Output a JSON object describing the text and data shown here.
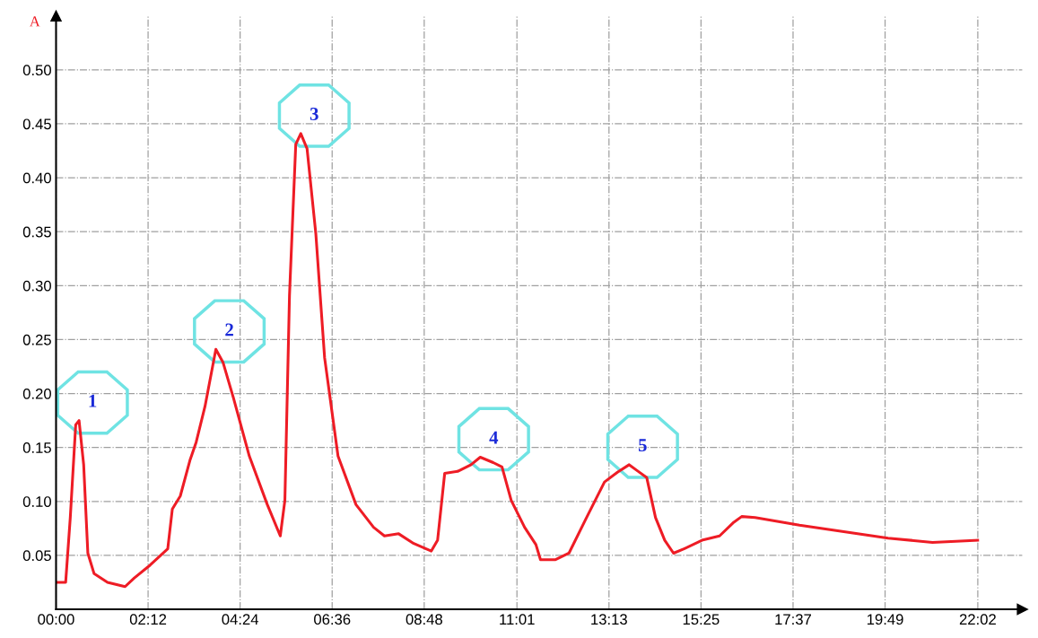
{
  "chart_data": {
    "type": "line",
    "ylabel": "A",
    "x": [
      0,
      0.23,
      0.34,
      0.47,
      0.55,
      0.66,
      0.76,
      0.91,
      1.23,
      1.65,
      1.87,
      2.25,
      2.67,
      2.78,
      2.97,
      3.2,
      3.35,
      3.56,
      3.82,
      3.99,
      4.24,
      4.62,
      5.05,
      5.36,
      5.47,
      5.58,
      5.73,
      5.85,
      6.0,
      6.21,
      6.42,
      6.74,
      7.17,
      7.59,
      7.85,
      8.19,
      8.55,
      8.97,
      9.12,
      9.29,
      9.61,
      9.92,
      10.14,
      10.45,
      10.66,
      10.88,
      11.2,
      11.47,
      11.58,
      11.94,
      12.26,
      12.68,
      13.11,
      13.42,
      13.7,
      13.91,
      14.12,
      14.33,
      14.55,
      14.76,
      15.01,
      15.44,
      15.86,
      16.18,
      16.39,
      16.71,
      17.77,
      18.83,
      19.89,
      20.95,
      22.03
    ],
    "series": [
      {
        "color": "#ee1c25",
        "values": [
          0.025,
          0.025,
          0.085,
          0.171,
          0.175,
          0.134,
          0.052,
          0.033,
          0.025,
          0.021,
          0.029,
          0.041,
          0.056,
          0.093,
          0.105,
          0.138,
          0.155,
          0.188,
          0.241,
          0.229,
          0.196,
          0.142,
          0.097,
          0.068,
          0.101,
          0.291,
          0.431,
          0.441,
          0.427,
          0.348,
          0.233,
          0.142,
          0.097,
          0.076,
          0.068,
          0.07,
          0.061,
          0.054,
          0.064,
          0.126,
          0.128,
          0.134,
          0.141,
          0.136,
          0.132,
          0.101,
          0.076,
          0.06,
          0.046,
          0.046,
          0.052,
          0.085,
          0.118,
          0.127,
          0.134,
          0.128,
          0.122,
          0.085,
          0.064,
          0.052,
          0.056,
          0.064,
          0.068,
          0.08,
          0.086,
          0.085,
          0.078,
          0.072,
          0.066,
          0.062,
          0.064
        ]
      }
    ],
    "xlim": [
      0,
      23.1
    ],
    "ylim": [
      0,
      0.55
    ],
    "xticks": [
      {
        "value": 0,
        "label": "00:00"
      },
      {
        "value": 2.2,
        "label": "02:12"
      },
      {
        "value": 4.4,
        "label": "04:24"
      },
      {
        "value": 6.6,
        "label": "06:36"
      },
      {
        "value": 8.8,
        "label": "08:48"
      },
      {
        "value": 11.017,
        "label": "11:01"
      },
      {
        "value": 13.217,
        "label": "13:13"
      },
      {
        "value": 15.417,
        "label": "15:25"
      },
      {
        "value": 17.617,
        "label": "17:37"
      },
      {
        "value": 19.817,
        "label": "19:49"
      },
      {
        "value": 22.033,
        "label": "22:02"
      }
    ],
    "yticks": [
      {
        "value": 0.05,
        "label": "0.05"
      },
      {
        "value": 0.1,
        "label": "0.10"
      },
      {
        "value": 0.15,
        "label": "0.15"
      },
      {
        "value": 0.2,
        "label": "0.20"
      },
      {
        "value": 0.25,
        "label": "0.25"
      },
      {
        "value": 0.3,
        "label": "0.30"
      },
      {
        "value": 0.35,
        "label": "0.35"
      },
      {
        "value": 0.4,
        "label": "0.40"
      },
      {
        "value": 0.45,
        "label": "0.45"
      },
      {
        "value": 0.5,
        "label": "0.50"
      }
    ],
    "grid": true,
    "marker": "none",
    "line_style": "solid",
    "annotations": [
      {
        "text": "1",
        "x": 0.55,
        "y": 0.175
      },
      {
        "text": "2",
        "x": 3.82,
        "y": 0.241
      },
      {
        "text": "3",
        "x": 5.85,
        "y": 0.441
      },
      {
        "text": "4",
        "x": 10.14,
        "y": 0.141
      },
      {
        "text": "5",
        "x": 13.7,
        "y": 0.134
      }
    ]
  }
}
